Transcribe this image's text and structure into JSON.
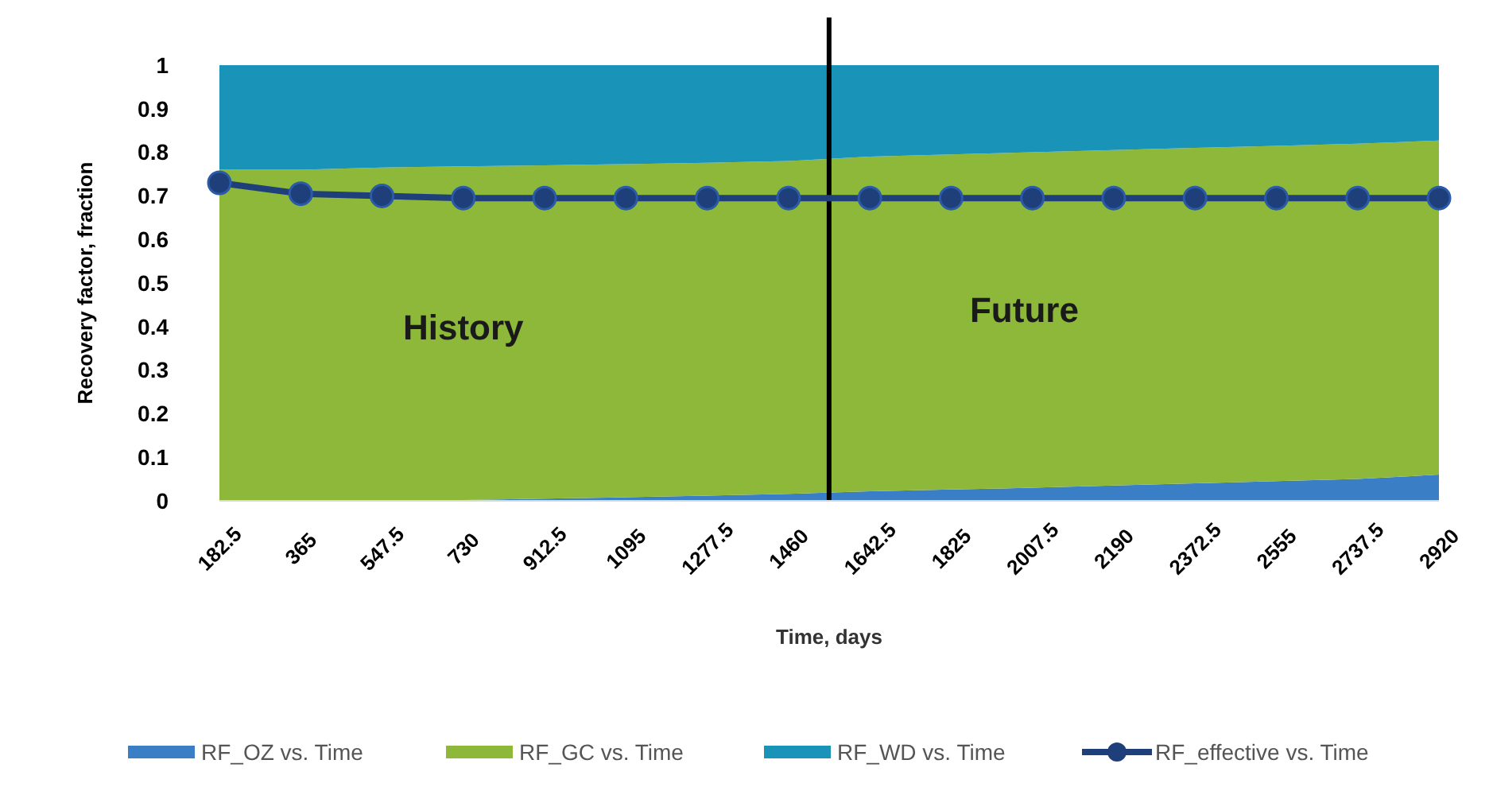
{
  "chart_data": {
    "type": "area",
    "stacked": true,
    "xlabel": "Time, days",
    "ylabel": "Recovery factor, fraction",
    "x": [
      182.5,
      365,
      547.5,
      730,
      912.5,
      1095,
      1277.5,
      1460,
      1642.5,
      1825,
      2007.5,
      2190,
      2372.5,
      2555,
      2737.5,
      2920
    ],
    "xlim": [
      182.5,
      2920
    ],
    "xticks": [
      182.5,
      365,
      547.5,
      730,
      912.5,
      1095,
      1277.5,
      1460,
      1642.5,
      1825,
      2007.5,
      2190,
      2372.5,
      2555,
      2737.5,
      2920
    ],
    "ylim": [
      0,
      1
    ],
    "yticks": [
      0,
      0.1,
      0.2,
      0.3,
      0.4,
      0.5,
      0.6,
      0.7,
      0.8,
      0.9,
      1
    ],
    "series": [
      {
        "name": "RF_OZ vs. Time",
        "color": "#3a7fc6",
        "values": [
          0,
          0,
          0,
          0.002,
          0.005,
          0.008,
          0.012,
          0.016,
          0.022,
          0.026,
          0.03,
          0.035,
          0.04,
          0.045,
          0.05,
          0.06
        ]
      },
      {
        "name": "RF_GC vs. Time",
        "color": "#8db83a",
        "values": [
          0.76,
          0.76,
          0.765,
          0.766,
          0.765,
          0.765,
          0.764,
          0.764,
          0.768,
          0.769,
          0.77,
          0.77,
          0.77,
          0.77,
          0.77,
          0.767
        ]
      },
      {
        "name": "RF_WD vs. Time",
        "color": "#1a93b8",
        "values": [
          0.24,
          0.24,
          0.235,
          0.232,
          0.23,
          0.227,
          0.224,
          0.22,
          0.21,
          0.205,
          0.2,
          0.195,
          0.19,
          0.185,
          0.18,
          0.173
        ]
      },
      {
        "name": "RF_effective vs. Time",
        "type": "line",
        "color": "#1f3f7a",
        "marker": "circle",
        "values": [
          0.73,
          0.705,
          0.7,
          0.695,
          0.695,
          0.695,
          0.695,
          0.695,
          0.695,
          0.695,
          0.695,
          0.695,
          0.695,
          0.695,
          0.695,
          0.695
        ]
      }
    ],
    "ref_lines": [
      {
        "axis": "x",
        "value": 1551,
        "color": "#000000"
      }
    ],
    "annotations": [
      "History",
      "Future"
    ],
    "legend": "bottom"
  }
}
